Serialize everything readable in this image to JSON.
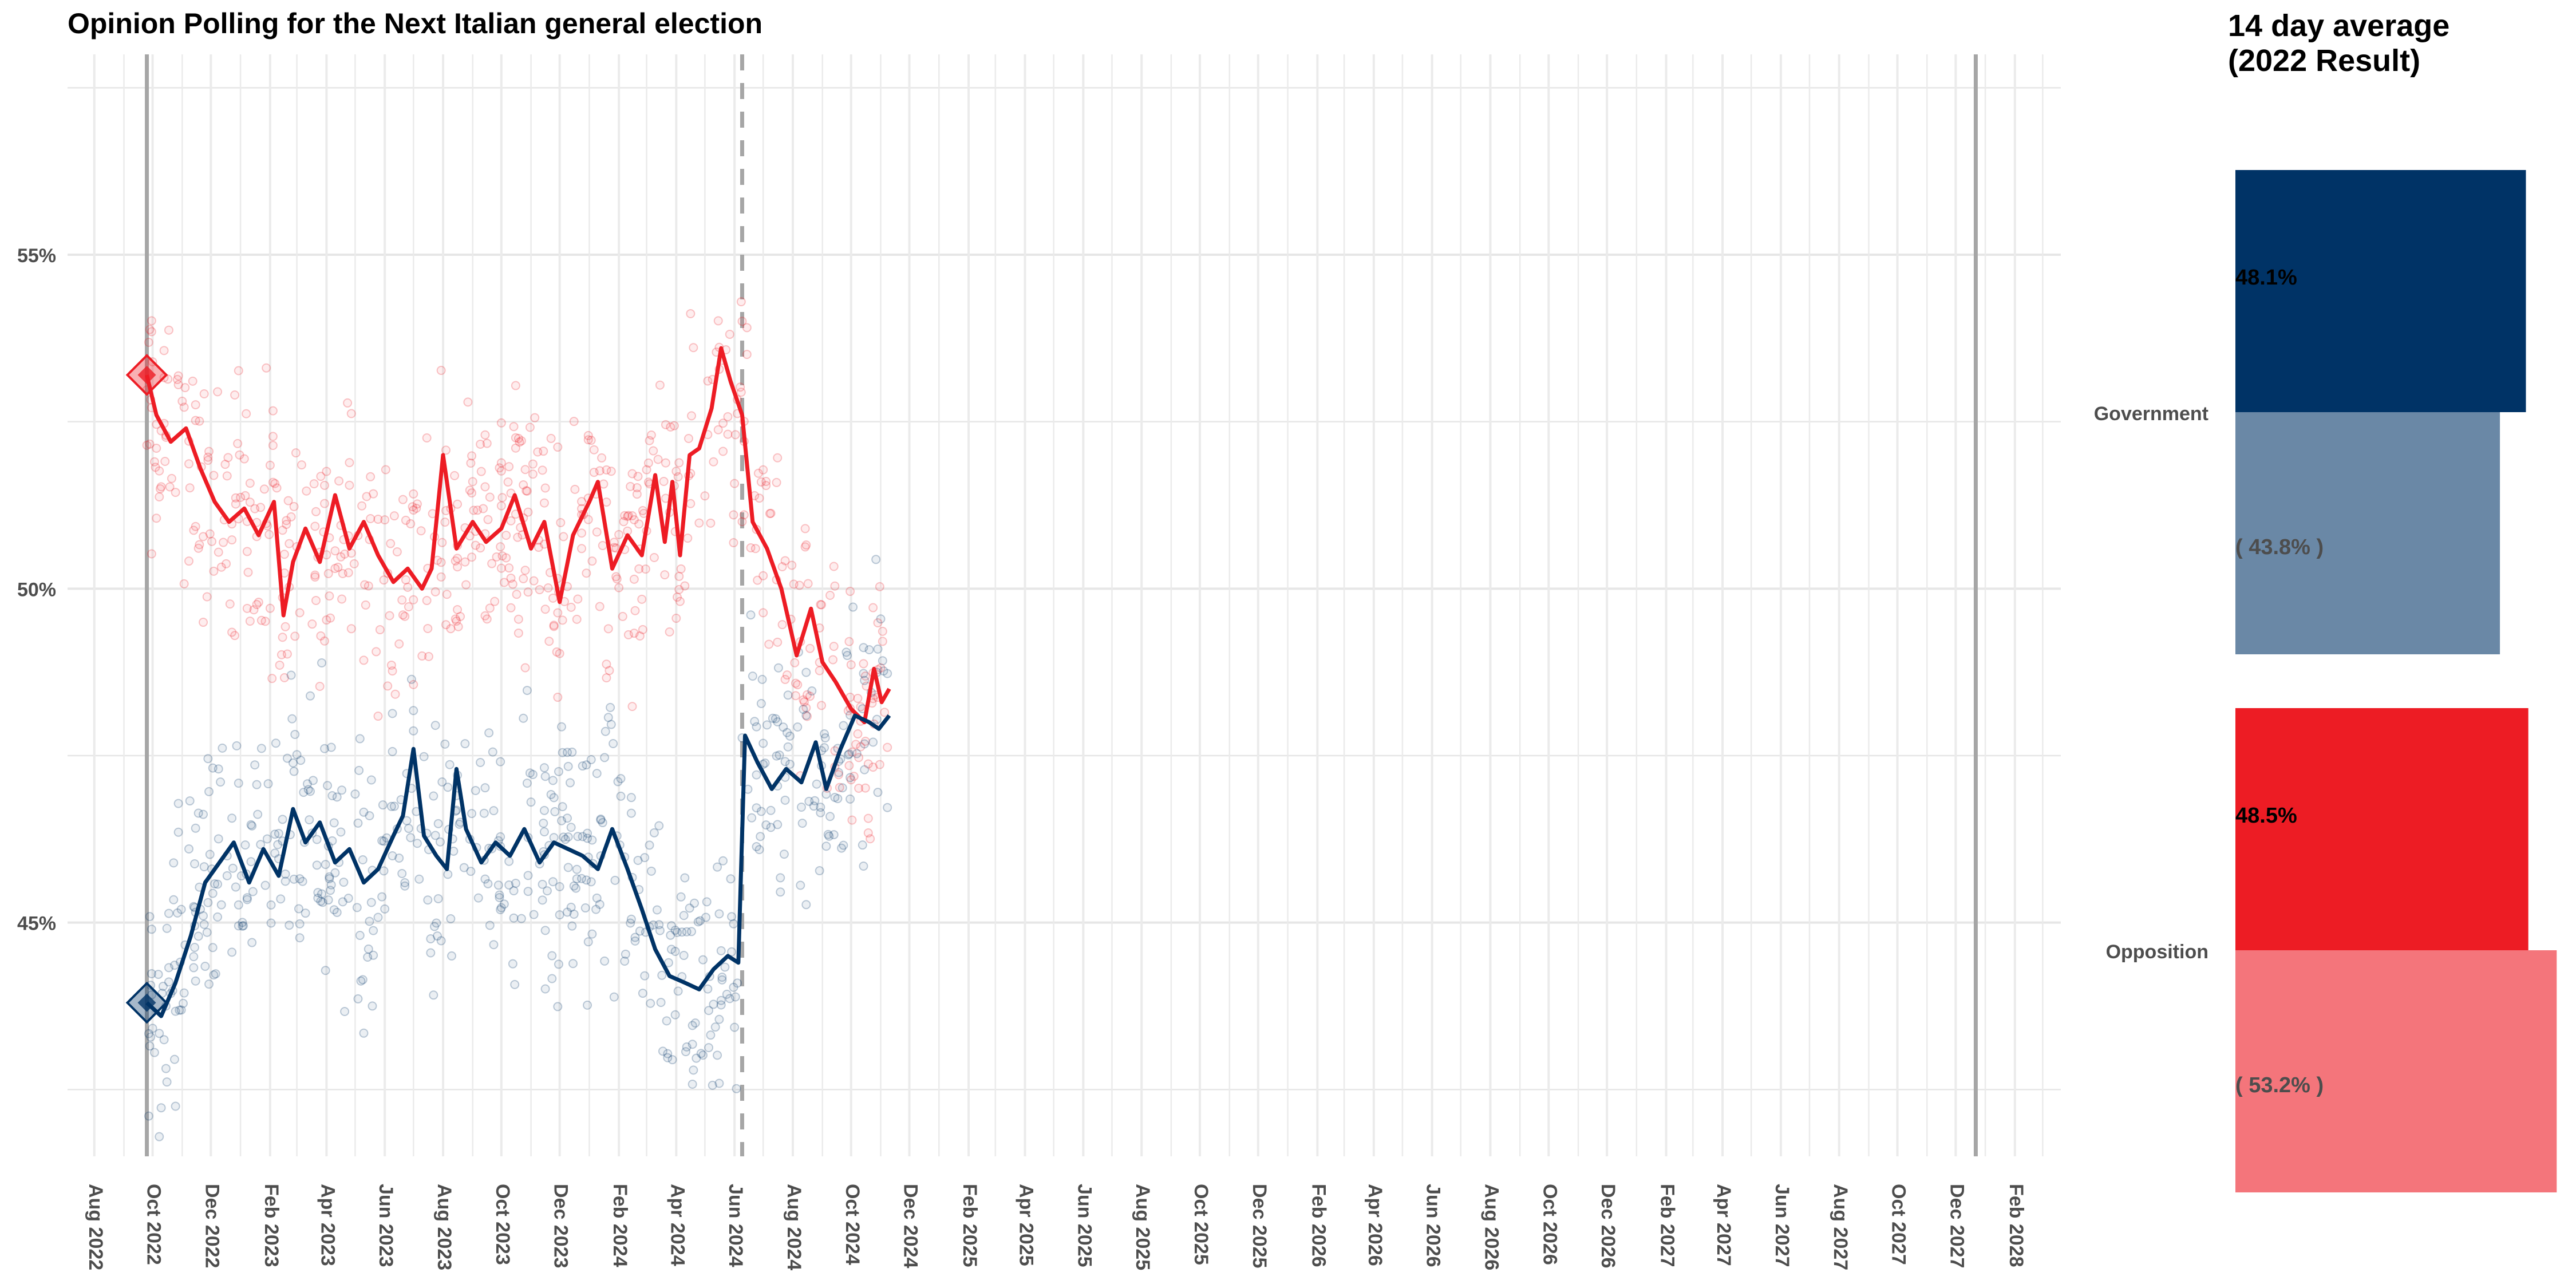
{
  "chart_data": [
    {
      "type": "line",
      "title": "Opinion Polling for the Next Italian general election",
      "xlabel": "",
      "ylabel": "",
      "ylim": [
        41.5,
        58.0
      ],
      "xlim": [
        "2022-07-04",
        "2028-03-20"
      ],
      "y_ticks": [
        45,
        50,
        55
      ],
      "y_tick_labels": [
        "45%",
        "50%",
        "55%"
      ],
      "x_tick_labels": [
        "Aug 2022",
        "Oct 2022",
        "Dec 2022",
        "Feb 2023",
        "Apr 2023",
        "Jun 2023",
        "Aug 2023",
        "Oct 2023",
        "Dec 2023",
        "Feb 2024",
        "Apr 2024",
        "Jun 2024",
        "Aug 2024",
        "Oct 2024",
        "Dec 2024",
        "Feb 2025",
        "Apr 2025",
        "Jun 2025",
        "Aug 2025",
        "Oct 2025",
        "Dec 2025",
        "Feb 2026",
        "Apr 2026",
        "Jun 2026",
        "Aug 2026",
        "Oct 2026",
        "Dec 2026",
        "Feb 2027",
        "Apr 2027",
        "Jun 2027",
        "Aug 2027",
        "Oct 2027",
        "Dec 2027",
        "Feb 2028"
      ],
      "x_ticks": [
        "2022-08-01",
        "2022-10-01",
        "2022-12-01",
        "2023-02-01",
        "2023-04-01",
        "2023-06-01",
        "2023-08-01",
        "2023-10-01",
        "2023-12-01",
        "2024-02-01",
        "2024-04-01",
        "2024-06-01",
        "2024-08-01",
        "2024-10-01",
        "2024-12-01",
        "2025-02-01",
        "2025-04-01",
        "2025-06-01",
        "2025-08-01",
        "2025-10-01",
        "2025-12-01",
        "2026-02-01",
        "2026-04-01",
        "2026-06-01",
        "2026-08-01",
        "2026-10-01",
        "2026-12-01",
        "2027-02-01",
        "2027-04-01",
        "2027-06-01",
        "2027-08-01",
        "2027-10-01",
        "2027-12-01",
        "2028-02-01"
      ],
      "vlines": [
        {
          "date": "2022-09-25",
          "style": "solid"
        },
        {
          "date": "2024-06-09",
          "style": "dashed"
        },
        {
          "date": "2027-12-22",
          "style": "solid"
        }
      ],
      "grid": true,
      "series": [
        {
          "color": "#ED1C24",
          "result_marker": {
            "date": "2022-09-25",
            "value": 53.2
          },
          "points": [
            [
              "2022-09-25",
              53.2
            ],
            [
              "2022-10-05",
              52.6
            ],
            [
              "2022-10-20",
              52.2
            ],
            [
              "2022-11-05",
              52.4
            ],
            [
              "2022-11-20",
              51.8
            ],
            [
              "2022-12-05",
              51.3
            ],
            [
              "2022-12-20",
              51.0
            ],
            [
              "2023-01-05",
              51.2
            ],
            [
              "2023-01-20",
              50.8
            ],
            [
              "2023-02-05",
              51.3
            ],
            [
              "2023-02-15",
              49.6
            ],
            [
              "2023-02-25",
              50.4
            ],
            [
              "2023-03-10",
              50.9
            ],
            [
              "2023-03-25",
              50.4
            ],
            [
              "2023-04-10",
              51.4
            ],
            [
              "2023-04-25",
              50.6
            ],
            [
              "2023-05-10",
              51.0
            ],
            [
              "2023-05-25",
              50.5
            ],
            [
              "2023-06-10",
              50.1
            ],
            [
              "2023-06-25",
              50.3
            ],
            [
              "2023-07-10",
              50.0
            ],
            [
              "2023-07-20",
              50.3
            ],
            [
              "2023-08-01",
              52.0
            ],
            [
              "2023-08-15",
              50.6
            ],
            [
              "2023-09-01",
              51.0
            ],
            [
              "2023-09-15",
              50.7
            ],
            [
              "2023-10-01",
              50.9
            ],
            [
              "2023-10-15",
              51.4
            ],
            [
              "2023-11-01",
              50.6
            ],
            [
              "2023-11-15",
              51.0
            ],
            [
              "2023-12-01",
              49.8
            ],
            [
              "2023-12-15",
              50.8
            ],
            [
              "2024-01-01",
              51.3
            ],
            [
              "2024-01-10",
              51.6
            ],
            [
              "2024-01-25",
              50.3
            ],
            [
              "2024-02-10",
              50.8
            ],
            [
              "2024-02-25",
              50.5
            ],
            [
              "2024-03-10",
              51.7
            ],
            [
              "2024-03-20",
              50.7
            ],
            [
              "2024-03-28",
              51.6
            ],
            [
              "2024-04-05",
              50.5
            ],
            [
              "2024-04-15",
              52.0
            ],
            [
              "2024-04-25",
              52.1
            ],
            [
              "2024-05-08",
              52.7
            ],
            [
              "2024-05-18",
              53.6
            ],
            [
              "2024-05-28",
              53.1
            ],
            [
              "2024-06-09",
              52.6
            ],
            [
              "2024-06-20",
              51.0
            ],
            [
              "2024-07-05",
              50.6
            ],
            [
              "2024-07-20",
              50.0
            ],
            [
              "2024-08-05",
              49.0
            ],
            [
              "2024-08-20",
              49.7
            ],
            [
              "2024-09-01",
              48.9
            ],
            [
              "2024-09-15",
              48.6
            ],
            [
              "2024-10-01",
              48.2
            ],
            [
              "2024-10-15",
              48.0
            ],
            [
              "2024-10-25",
              48.8
            ],
            [
              "2024-11-02",
              48.3
            ],
            [
              "2024-11-10",
              48.5
            ]
          ]
        },
        {
          "color": "#003366",
          "result_marker": {
            "date": "2022-09-25",
            "value": 43.8
          },
          "points": [
            [
              "2022-09-25",
              43.8
            ],
            [
              "2022-10-10",
              43.6
            ],
            [
              "2022-10-25",
              44.1
            ],
            [
              "2022-11-10",
              44.8
            ],
            [
              "2022-11-25",
              45.6
            ],
            [
              "2022-12-10",
              45.9
            ],
            [
              "2022-12-25",
              46.2
            ],
            [
              "2023-01-10",
              45.6
            ],
            [
              "2023-01-25",
              46.1
            ],
            [
              "2023-02-10",
              45.7
            ],
            [
              "2023-02-25",
              46.7
            ],
            [
              "2023-03-10",
              46.2
            ],
            [
              "2023-03-25",
              46.5
            ],
            [
              "2023-04-10",
              45.9
            ],
            [
              "2023-04-25",
              46.1
            ],
            [
              "2023-05-10",
              45.6
            ],
            [
              "2023-05-25",
              45.8
            ],
            [
              "2023-06-10",
              46.3
            ],
            [
              "2023-06-20",
              46.6
            ],
            [
              "2023-07-01",
              47.6
            ],
            [
              "2023-07-12",
              46.3
            ],
            [
              "2023-07-25",
              46.0
            ],
            [
              "2023-08-05",
              45.8
            ],
            [
              "2023-08-15",
              47.3
            ],
            [
              "2023-08-25",
              46.4
            ],
            [
              "2023-09-10",
              45.9
            ],
            [
              "2023-09-25",
              46.2
            ],
            [
              "2023-10-10",
              46.0
            ],
            [
              "2023-10-25",
              46.4
            ],
            [
              "2023-11-10",
              45.9
            ],
            [
              "2023-11-25",
              46.2
            ],
            [
              "2023-12-10",
              46.1
            ],
            [
              "2023-12-25",
              46.0
            ],
            [
              "2024-01-10",
              45.8
            ],
            [
              "2024-01-25",
              46.4
            ],
            [
              "2024-02-10",
              45.8
            ],
            [
              "2024-02-25",
              45.2
            ],
            [
              "2024-03-10",
              44.6
            ],
            [
              "2024-03-25",
              44.2
            ],
            [
              "2024-04-10",
              44.1
            ],
            [
              "2024-04-25",
              44.0
            ],
            [
              "2024-05-10",
              44.3
            ],
            [
              "2024-05-25",
              44.5
            ],
            [
              "2024-06-05",
              44.4
            ],
            [
              "2024-06-12",
              47.8
            ],
            [
              "2024-06-25",
              47.4
            ],
            [
              "2024-07-10",
              47.0
            ],
            [
              "2024-07-25",
              47.3
            ],
            [
              "2024-08-10",
              47.1
            ],
            [
              "2024-08-25",
              47.7
            ],
            [
              "2024-09-05",
              47.0
            ],
            [
              "2024-09-20",
              47.6
            ],
            [
              "2024-10-05",
              48.1
            ],
            [
              "2024-10-20",
              48.0
            ],
            [
              "2024-10-30",
              47.9
            ],
            [
              "2024-11-10",
              48.1
            ]
          ]
        }
      ]
    },
    {
      "type": "bar",
      "title": "14 day average\n(2022 Result)",
      "title_lines": [
        "14 day average",
        "(2022 Result)"
      ],
      "categories": [
        "Government",
        "Opposition"
      ],
      "series": [
        {
          "values": [
            48.1,
            48.5
          ],
          "labels": [
            "48.1%",
            "48.5%"
          ],
          "colors": [
            "#003366",
            "#ED1C24"
          ]
        },
        {
          "values": [
            43.8,
            53.2
          ],
          "labels": [
            "( 43.8% )",
            "( 53.2% )"
          ],
          "colors": [
            "#6A88A6",
            "#F4757B"
          ]
        }
      ]
    }
  ]
}
